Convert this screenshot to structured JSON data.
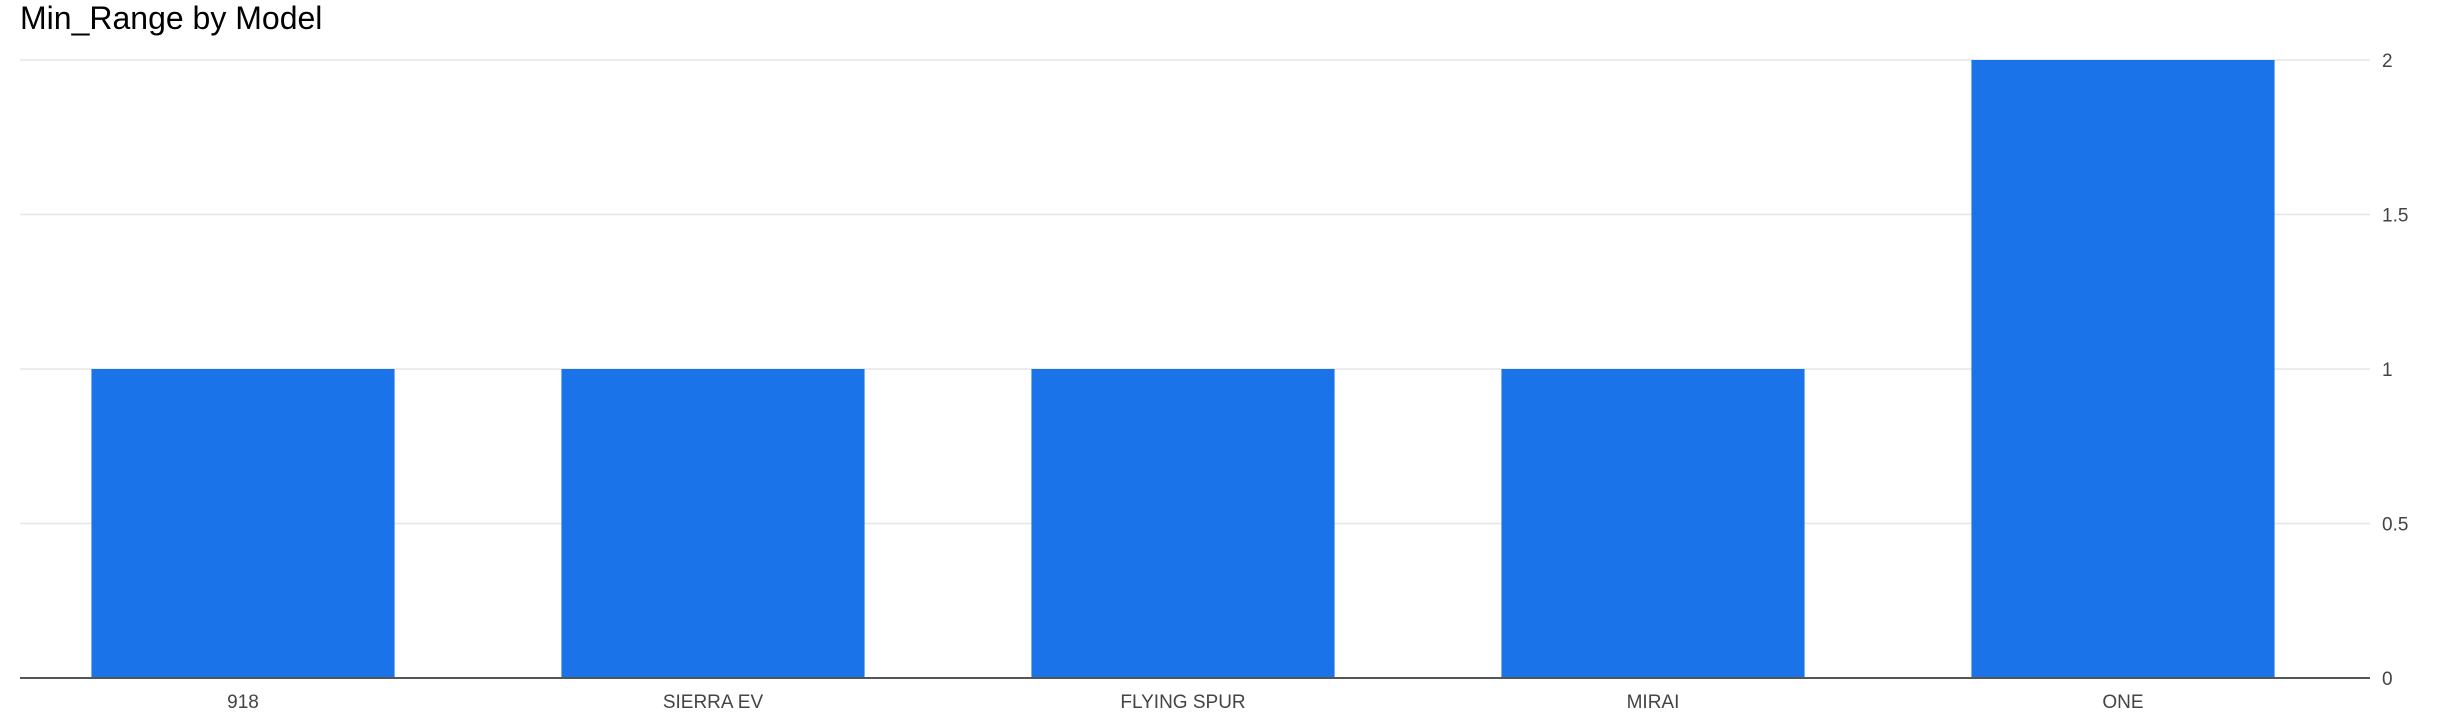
{
  "chart_data": {
    "type": "bar",
    "title": "Min_Range by Model",
    "xlabel": "",
    "ylabel": "",
    "categories": [
      "918",
      "SIERRA EV",
      "FLYING SPUR",
      "MIRAI",
      "ONE"
    ],
    "values": [
      1,
      1,
      1,
      1,
      2
    ],
    "ylim": [
      0,
      2
    ],
    "y_ticks": [
      0,
      0.5,
      1,
      1.5,
      2
    ],
    "y_tick_labels": [
      "0",
      "0.5",
      "1",
      "1.5",
      "2"
    ],
    "y_axis_side": "right",
    "grid": true,
    "legend": "none",
    "colors": {
      "bar": "#1a73e8",
      "grid": "#e6e6e6",
      "axis": "#555555",
      "text": "#444444"
    }
  }
}
